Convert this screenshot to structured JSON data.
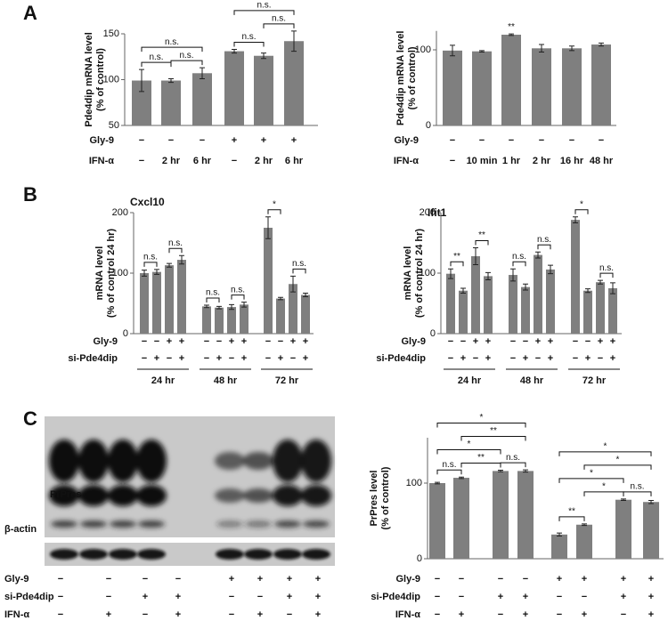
{
  "panel_labels": [
    "A",
    "B",
    "C"
  ],
  "chart_data": [
    {
      "type": "bar",
      "ylabel": [
        "Pde4dip mRNA level",
        "(% of control)"
      ],
      "color": "#7f7f7f",
      "ylim": [
        50,
        150
      ],
      "yticks": [
        50,
        100,
        150
      ],
      "values": [
        99,
        99,
        107,
        131,
        126,
        142
      ],
      "errors": [
        12,
        2,
        6,
        2,
        3,
        11
      ],
      "conditions": [
        {
          "label": "Gly-9",
          "values": [
            "−",
            "−",
            "−",
            "+",
            "+",
            "+"
          ]
        },
        {
          "label": "IFN-α",
          "values": [
            "−",
            "2 hr",
            "6 hr",
            "−",
            "2 hr",
            "6 hr"
          ]
        }
      ],
      "annotations": [
        {
          "text": "n.s.",
          "bars": [
            0,
            1
          ]
        },
        {
          "text": "n.s.",
          "bars": [
            1,
            2
          ]
        },
        {
          "text": "n.s.",
          "bars": [
            0,
            2
          ]
        },
        {
          "text": "n.s.",
          "bars": [
            3,
            4
          ]
        },
        {
          "text": "n.s.",
          "bars": [
            4,
            5
          ]
        },
        {
          "text": "n.s.",
          "bars": [
            3,
            5
          ]
        }
      ]
    },
    {
      "type": "bar",
      "ylabel": [
        "Pde4dip mRNA level",
        "(% of control)"
      ],
      "color": "#7f7f7f",
      "ylim": [
        0,
        125
      ],
      "yticks": [
        0,
        100
      ],
      "values": [
        99,
        98,
        120,
        102,
        102,
        107
      ],
      "errors": [
        7,
        1,
        1,
        5,
        3,
        2
      ],
      "conditions": [
        {
          "label": "Gly-9",
          "values": [
            "−",
            "−",
            "−",
            "−",
            "−",
            "−"
          ]
        },
        {
          "label": "IFN-α",
          "values": [
            "−",
            "10 min",
            "1 hr",
            "2 hr",
            "16 hr",
            "48 hr"
          ]
        }
      ],
      "annotations": [
        {
          "text": "**",
          "bars": [
            2
          ]
        }
      ]
    },
    {
      "type": "bar",
      "title": "Cxcl10",
      "ylabel": [
        "mRNA level",
        "(% of control 24 hr)"
      ],
      "color": "#7f7f7f",
      "ylim": [
        0,
        200
      ],
      "yticks": [
        0,
        100,
        200
      ],
      "values": [
        100,
        102,
        113,
        122,
        45,
        43,
        44,
        48,
        175,
        58,
        82,
        64
      ],
      "errors": [
        5,
        4,
        3,
        7,
        2,
        2,
        4,
        4,
        18,
        2,
        13,
        3
      ],
      "conditions": [
        {
          "label": "Gly-9",
          "values": [
            "−",
            "−",
            "+",
            "+",
            "−",
            "−",
            "+",
            "+",
            "−",
            "−",
            "+",
            "+"
          ]
        },
        {
          "label": "si-Pde4dip",
          "values": [
            "−",
            "+",
            "−",
            "+",
            "−",
            "+",
            "−",
            "+",
            "−",
            "+",
            "−",
            "+"
          ]
        }
      ],
      "groups": [
        "24 hr",
        "48 hr",
        "72 hr"
      ],
      "annotations": [
        {
          "text": "n.s.",
          "bars": [
            0,
            1
          ]
        },
        {
          "text": "n.s.",
          "bars": [
            2,
            3
          ]
        },
        {
          "text": "n.s.",
          "bars": [
            4,
            5
          ]
        },
        {
          "text": "n.s.",
          "bars": [
            6,
            7
          ]
        },
        {
          "text": "*",
          "bars": [
            8,
            9
          ]
        },
        {
          "text": "n.s.",
          "bars": [
            10,
            11
          ]
        }
      ]
    },
    {
      "type": "bar",
      "title": "Ifit1",
      "ylabel": [
        "mRNA level",
        "(% of control 24 hr)"
      ],
      "color": "#7f7f7f",
      "ylim": [
        0,
        200
      ],
      "yticks": [
        0,
        100,
        200
      ],
      "values": [
        99,
        71,
        128,
        95,
        97,
        77,
        130,
        106,
        188,
        71,
        85,
        75
      ],
      "errors": [
        8,
        4,
        14,
        6,
        10,
        5,
        5,
        7,
        5,
        3,
        3,
        9
      ],
      "conditions": [
        {
          "label": "Gly-9",
          "values": [
            "−",
            "−",
            "+",
            "+",
            "−",
            "−",
            "+",
            "+",
            "−",
            "−",
            "+",
            "+"
          ]
        },
        {
          "label": "si-Pde4dip",
          "values": [
            "−",
            "+",
            "−",
            "+",
            "−",
            "+",
            "−",
            "+",
            "−",
            "+",
            "−",
            "+"
          ]
        }
      ],
      "groups": [
        "24 hr",
        "48 hr",
        "72 hr"
      ],
      "annotations": [
        {
          "text": "**",
          "bars": [
            0,
            1
          ]
        },
        {
          "text": "**",
          "bars": [
            2,
            3
          ]
        },
        {
          "text": "n.s.",
          "bars": [
            4,
            5
          ]
        },
        {
          "text": "n.s.",
          "bars": [
            6,
            7
          ]
        },
        {
          "text": "*",
          "bars": [
            8,
            9
          ]
        },
        {
          "text": "n.s.",
          "bars": [
            10,
            11
          ]
        }
      ]
    },
    {
      "type": "bar",
      "ylabel": [
        "PrPres level",
        "(% of control)"
      ],
      "color": "#7f7f7f",
      "ylim": [
        0,
        160
      ],
      "yticks": [
        0,
        100
      ],
      "values": [
        100,
        107,
        116,
        116,
        32,
        45,
        78,
        75
      ],
      "errors": [
        1,
        1,
        1,
        1.5,
        2,
        1,
        1,
        2
      ],
      "conditions": [
        {
          "label": "Gly-9",
          "values": [
            "−",
            "−",
            "−",
            "−",
            "+",
            "+",
            "+",
            "+"
          ]
        },
        {
          "label": "si-Pde4dip",
          "values": [
            "−",
            "−",
            "+",
            "+",
            "−",
            "−",
            "+",
            "+"
          ]
        },
        {
          "label": "IFN-α",
          "values": [
            "−",
            "+",
            "−",
            "+",
            "−",
            "+",
            "−",
            "+"
          ]
        }
      ],
      "annotations": [
        {
          "text": "n.s.",
          "bars": [
            0,
            1
          ]
        },
        {
          "text": "**",
          "bars": [
            1,
            2
          ]
        },
        {
          "text": "n.s.",
          "bars": [
            2,
            3
          ]
        },
        {
          "text": "*",
          "bars": [
            0,
            2
          ]
        },
        {
          "text": "**",
          "bars": [
            1,
            3
          ]
        },
        {
          "text": "*",
          "bars": [
            0,
            3
          ]
        },
        {
          "text": "**",
          "bars": [
            4,
            5
          ]
        },
        {
          "text": "*",
          "bars": [
            5,
            6
          ]
        },
        {
          "text": "n.s.",
          "bars": [
            6,
            7
          ]
        },
        {
          "text": "*",
          "bars": [
            4,
            6
          ]
        },
        {
          "text": "*",
          "bars": [
            5,
            7
          ]
        },
        {
          "text": "*",
          "bars": [
            4,
            7
          ]
        }
      ]
    }
  ],
  "blot": {
    "bands": [
      "PrPres",
      "β-actin"
    ],
    "conditions": [
      {
        "label": "Gly-9",
        "values": [
          "−",
          "−",
          "−",
          "−",
          "+",
          "+",
          "+",
          "+"
        ]
      },
      {
        "label": "si-Pde4dip",
        "values": [
          "−",
          "−",
          "+",
          "+",
          "−",
          "−",
          "+",
          "+"
        ]
      },
      {
        "label": "IFN-α",
        "values": [
          "−",
          "+",
          "−",
          "+",
          "−",
          "+",
          "−",
          "+"
        ]
      }
    ]
  }
}
